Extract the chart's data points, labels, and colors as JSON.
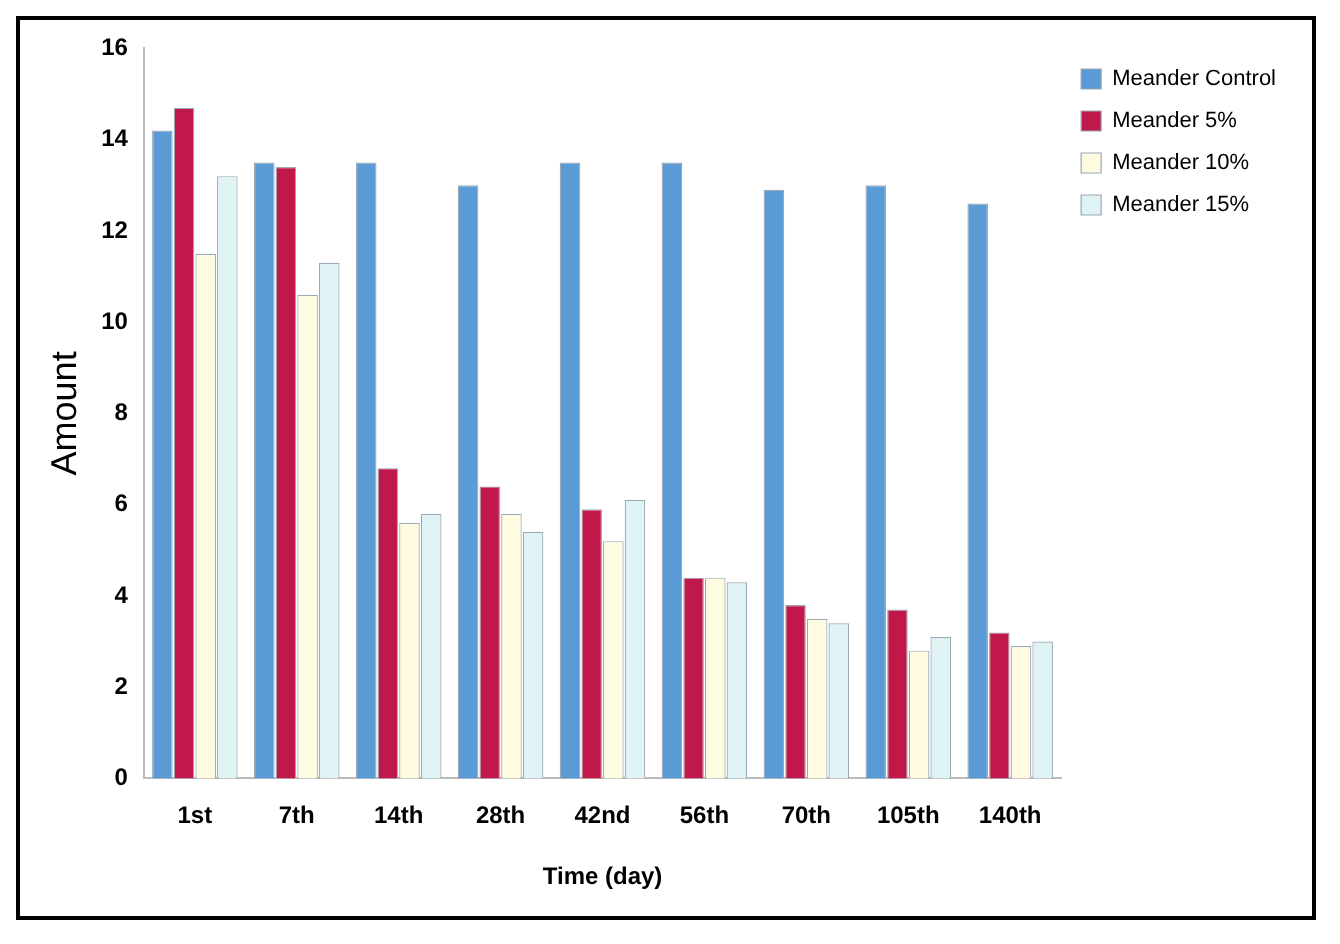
{
  "chart_data": {
    "type": "bar",
    "xlabel": "Time (day)",
    "ylabel": "Amount",
    "categories": [
      "1st",
      "7th",
      "14th",
      "28th",
      "42nd",
      "56th",
      "70th",
      "105th",
      "140th"
    ],
    "series": [
      {
        "name": "Meander Control",
        "color": "#5b9bd5",
        "values": [
          14.2,
          13.5,
          13.5,
          13.0,
          13.5,
          13.5,
          12.9,
          13.0,
          12.6
        ]
      },
      {
        "name": "Meander 5%",
        "color": "#c0184a",
        "values": [
          14.7,
          13.4,
          6.8,
          6.4,
          5.9,
          4.4,
          3.8,
          3.7,
          3.2
        ]
      },
      {
        "name": "Meander 10%",
        "color": "#fffbe0",
        "values": [
          11.5,
          10.6,
          5.6,
          5.8,
          5.2,
          4.4,
          3.5,
          2.8,
          2.9
        ]
      },
      {
        "name": "Meander 15%",
        "color": "#dff3f5",
        "values": [
          13.2,
          11.3,
          5.8,
          5.4,
          6.1,
          4.3,
          3.4,
          3.1,
          3.0
        ]
      }
    ],
    "ylim": [
      0,
      16
    ],
    "yticks": [
      0,
      2,
      4,
      6,
      8,
      10,
      12,
      14,
      16
    ],
    "grid": false,
    "legend": "top right"
  }
}
